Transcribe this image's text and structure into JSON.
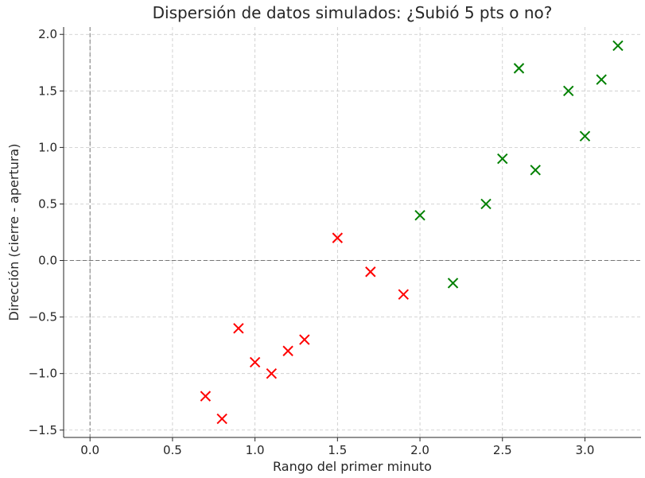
{
  "chart_data": {
    "type": "scatter",
    "title": "Dispersión de datos simulados: ¿Subió 5 pts o no?",
    "xlabel": "Rango del primer minuto",
    "ylabel": "Dirección (cierre - apertura)",
    "xlim": [
      -0.16,
      3.34
    ],
    "ylim": [
      -1.565,
      2.065
    ],
    "xticks": [
      0.0,
      0.5,
      1.0,
      1.5,
      2.0,
      2.5,
      3.0
    ],
    "xtick_labels": [
      "0.0",
      "0.5",
      "1.0",
      "1.5",
      "2.0",
      "2.5",
      "3.0"
    ],
    "yticks": [
      -1.5,
      -1.0,
      -0.5,
      0.0,
      0.5,
      1.0,
      1.5,
      2.0
    ],
    "ytick_labels": [
      "−1.5",
      "−1.0",
      "−0.5",
      "0.0",
      "0.5",
      "1.0",
      "1.5",
      "2.0"
    ],
    "grid": true,
    "reference_lines": {
      "x": 0,
      "y": 0
    },
    "marker": "x",
    "series": [
      {
        "color": "#ff0000",
        "points": [
          {
            "x": 0.7,
            "y": -1.2
          },
          {
            "x": 0.8,
            "y": -1.4
          },
          {
            "x": 0.9,
            "y": -0.6
          },
          {
            "x": 1.0,
            "y": -0.9
          },
          {
            "x": 1.1,
            "y": -1.0
          },
          {
            "x": 1.2,
            "y": -0.8
          },
          {
            "x": 1.3,
            "y": -0.7
          },
          {
            "x": 1.5,
            "y": 0.2
          },
          {
            "x": 1.7,
            "y": -0.1
          },
          {
            "x": 1.9,
            "y": -0.3
          }
        ]
      },
      {
        "color": "#008000",
        "points": [
          {
            "x": 2.0,
            "y": 0.4
          },
          {
            "x": 2.2,
            "y": -0.2
          },
          {
            "x": 2.4,
            "y": 0.5
          },
          {
            "x": 2.5,
            "y": 0.9
          },
          {
            "x": 2.6,
            "y": 1.7
          },
          {
            "x": 2.7,
            "y": 0.8
          },
          {
            "x": 2.9,
            "y": 1.5
          },
          {
            "x": 3.0,
            "y": 1.1
          },
          {
            "x": 3.1,
            "y": 1.6
          },
          {
            "x": 3.2,
            "y": 1.9
          }
        ]
      }
    ]
  }
}
